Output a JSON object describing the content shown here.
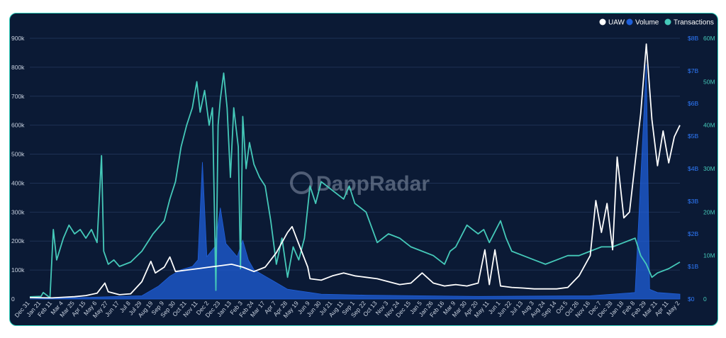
{
  "watermark": "DappRadar",
  "colors": {
    "background": "#0b1a35",
    "border": "#2fd1bd",
    "uaw": "#ffffff",
    "volume": "#1f5fd9",
    "transactions": "#45c9b9",
    "grid": "#1e3155",
    "left_axis_text": "#c9d2e0",
    "mid_axis_text": "#2f7bff",
    "right_axis_text": "#45c9b9"
  },
  "chart_data": {
    "type": "line",
    "legend": {
      "position": "top-right",
      "items": [
        "UAW",
        "Volume",
        "Transactions"
      ]
    },
    "grid": true,
    "x_ticks": [
      "Dec 31",
      "Jan 21",
      "Feb 11",
      "Mar 4",
      "Mar 25",
      "Apr 15",
      "May 6",
      "May 27",
      "Jun 17",
      "Jul 8",
      "Jul 29",
      "Aug 19",
      "Sep 9",
      "Sep 30",
      "Oct 21",
      "Nov 11",
      "Dec 2",
      "Dec 23",
      "Jan 13",
      "Feb 3",
      "Feb 24",
      "Mar 17",
      "Apr 7",
      "Apr 28",
      "May 19",
      "Jun 9",
      "Jun 30",
      "Jul 21",
      "Aug 11",
      "Sep 1",
      "Sep 22",
      "Oct 13",
      "Nov 3",
      "Nov 24",
      "Dec 15",
      "Jan 5",
      "Jan 26",
      "Feb 16",
      "Mar 9",
      "Mar 30",
      "Apr 20",
      "May 11",
      "Jun 1",
      "Jun 22",
      "Jul 13",
      "Aug 3",
      "Aug 24",
      "Sep 14",
      "Oct 5",
      "Oct 26",
      "Nov 16",
      "Dec 7",
      "Dec 28",
      "Jan 18",
      "Feb 8",
      "Feb 29",
      "Mar 21",
      "Apr 11",
      "May 2"
    ],
    "axes": {
      "uaw": {
        "ticks": [
          "0",
          "100k",
          "200k",
          "300k",
          "400k",
          "500k",
          "600k",
          "700k",
          "800k",
          "900k"
        ],
        "range": [
          0,
          900000
        ]
      },
      "volume": {
        "ticks": [
          "$0",
          "$1B",
          "$2B",
          "$3B",
          "$4B",
          "$5B",
          "$6B",
          "$7B",
          "$8B"
        ],
        "range": [
          0,
          8000000000
        ]
      },
      "transactions": {
        "ticks": [
          "0",
          "10M",
          "20M",
          "30M",
          "40M",
          "50M",
          "60M"
        ],
        "range": [
          0,
          60000000
        ]
      }
    },
    "series": [
      {
        "name": "UAW",
        "axis": "uaw",
        "points": [
          [
            0,
            5000
          ],
          [
            2,
            4000
          ],
          [
            3,
            6000
          ],
          [
            4,
            8000
          ],
          [
            5,
            12000
          ],
          [
            6,
            20000
          ],
          [
            6.7,
            55000
          ],
          [
            7,
            25000
          ],
          [
            8,
            15000
          ],
          [
            9,
            18000
          ],
          [
            10,
            60000
          ],
          [
            10.8,
            130000
          ],
          [
            11.2,
            90000
          ],
          [
            12,
            110000
          ],
          [
            12.5,
            145000
          ],
          [
            13,
            95000
          ],
          [
            14,
            100000
          ],
          [
            15,
            105000
          ],
          [
            16,
            110000
          ],
          [
            17,
            115000
          ],
          [
            18,
            120000
          ],
          [
            19,
            110000
          ],
          [
            20,
            95000
          ],
          [
            21,
            110000
          ],
          [
            22,
            160000
          ],
          [
            23,
            230000
          ],
          [
            23.4,
            250000
          ],
          [
            24,
            190000
          ],
          [
            24.8,
            110000
          ],
          [
            25,
            70000
          ],
          [
            26,
            65000
          ],
          [
            27,
            80000
          ],
          [
            28,
            90000
          ],
          [
            29,
            80000
          ],
          [
            30,
            75000
          ],
          [
            31,
            70000
          ],
          [
            32,
            60000
          ],
          [
            33,
            50000
          ],
          [
            34,
            55000
          ],
          [
            35,
            90000
          ],
          [
            36,
            55000
          ],
          [
            37,
            45000
          ],
          [
            38,
            50000
          ],
          [
            39,
            45000
          ],
          [
            40,
            55000
          ],
          [
            40.6,
            170000
          ],
          [
            41,
            50000
          ],
          [
            41.5,
            170000
          ],
          [
            42,
            45000
          ],
          [
            43,
            40000
          ],
          [
            44,
            38000
          ],
          [
            45,
            35000
          ],
          [
            46,
            35000
          ],
          [
            47,
            35000
          ],
          [
            48,
            40000
          ],
          [
            49,
            80000
          ],
          [
            50,
            150000
          ],
          [
            50.5,
            340000
          ],
          [
            51,
            230000
          ],
          [
            51.5,
            330000
          ],
          [
            52,
            170000
          ],
          [
            52.4,
            490000
          ],
          [
            53,
            280000
          ],
          [
            53.5,
            300000
          ],
          [
            54,
            470000
          ],
          [
            54.5,
            640000
          ],
          [
            55,
            880000
          ],
          [
            55.5,
            620000
          ],
          [
            56,
            460000
          ],
          [
            56.5,
            580000
          ],
          [
            57,
            470000
          ],
          [
            57.5,
            560000
          ],
          [
            58,
            600000
          ]
        ]
      },
      {
        "name": "Transactions",
        "axis": "transactions",
        "points": [
          [
            0,
            500000
          ],
          [
            1,
            600000
          ],
          [
            1.2,
            1500000
          ],
          [
            1.8,
            300000
          ],
          [
            2.1,
            16000000
          ],
          [
            2.4,
            9000000
          ],
          [
            3,
            14000000
          ],
          [
            3.5,
            17000000
          ],
          [
            4,
            15000000
          ],
          [
            4.5,
            16000000
          ],
          [
            5,
            14000000
          ],
          [
            5.5,
            16000000
          ],
          [
            6,
            13000000
          ],
          [
            6.4,
            33000000
          ],
          [
            6.6,
            11000000
          ],
          [
            7,
            8000000
          ],
          [
            7.5,
            9000000
          ],
          [
            8,
            7500000
          ],
          [
            9,
            8500000
          ],
          [
            10,
            11000000
          ],
          [
            11,
            15000000
          ],
          [
            12,
            18000000
          ],
          [
            12.5,
            23000000
          ],
          [
            13,
            27000000
          ],
          [
            13.5,
            35000000
          ],
          [
            14,
            40000000
          ],
          [
            14.5,
            44000000
          ],
          [
            14.9,
            50000000
          ],
          [
            15.2,
            43000000
          ],
          [
            15.6,
            48000000
          ],
          [
            16,
            40000000
          ],
          [
            16.3,
            44000000
          ],
          [
            16.6,
            2000000
          ],
          [
            16.8,
            40000000
          ],
          [
            17,
            46000000
          ],
          [
            17.3,
            52000000
          ],
          [
            17.6,
            44000000
          ],
          [
            17.9,
            28000000
          ],
          [
            18.2,
            44000000
          ],
          [
            18.6,
            35000000
          ],
          [
            18.8,
            7000000
          ],
          [
            19,
            42000000
          ],
          [
            19.3,
            30000000
          ],
          [
            19.6,
            36000000
          ],
          [
            20,
            31000000
          ],
          [
            20.5,
            28000000
          ],
          [
            21,
            26000000
          ],
          [
            21.5,
            18000000
          ],
          [
            22,
            8000000
          ],
          [
            22.5,
            14000000
          ],
          [
            23,
            5000000
          ],
          [
            23.5,
            12000000
          ],
          [
            24,
            9000000
          ],
          [
            24.5,
            14000000
          ],
          [
            25,
            26000000
          ],
          [
            25.5,
            22000000
          ],
          [
            26,
            27000000
          ],
          [
            27,
            25000000
          ],
          [
            28,
            23000000
          ],
          [
            28.5,
            26000000
          ],
          [
            29,
            22000000
          ],
          [
            30,
            20000000
          ],
          [
            31,
            13000000
          ],
          [
            32,
            15000000
          ],
          [
            33,
            14000000
          ],
          [
            34,
            12000000
          ],
          [
            35,
            11000000
          ],
          [
            36,
            10000000
          ],
          [
            37,
            8000000
          ],
          [
            37.5,
            11000000
          ],
          [
            38,
            12000000
          ],
          [
            39,
            17000000
          ],
          [
            39.5,
            16000000
          ],
          [
            40,
            15000000
          ],
          [
            40.5,
            16000000
          ],
          [
            41,
            13000000
          ],
          [
            42,
            18000000
          ],
          [
            42.5,
            14000000
          ],
          [
            43,
            11000000
          ],
          [
            44,
            10000000
          ],
          [
            45,
            9000000
          ],
          [
            46,
            8000000
          ],
          [
            47,
            9000000
          ],
          [
            48,
            10000000
          ],
          [
            49,
            10000000
          ],
          [
            50,
            11000000
          ],
          [
            51,
            12000000
          ],
          [
            52,
            12000000
          ],
          [
            53,
            13000000
          ],
          [
            54,
            14000000
          ],
          [
            54.5,
            10000000
          ],
          [
            55,
            8000000
          ],
          [
            55.5,
            5000000
          ],
          [
            56,
            6000000
          ],
          [
            57,
            7000000
          ],
          [
            58,
            8500000
          ]
        ]
      },
      {
        "name": "Volume",
        "axis": "volume",
        "points": [
          [
            0,
            0
          ],
          [
            5,
            50000000
          ],
          [
            10,
            100000000
          ],
          [
            11.5,
            400000000
          ],
          [
            12.5,
            700000000
          ],
          [
            13.5,
            900000000
          ],
          [
            14.5,
            1000000000
          ],
          [
            15,
            1200000000
          ],
          [
            15.4,
            4200000000
          ],
          [
            15.8,
            1300000000
          ],
          [
            16.5,
            1600000000
          ],
          [
            17,
            2800000000
          ],
          [
            17.5,
            1700000000
          ],
          [
            18,
            1500000000
          ],
          [
            18.5,
            1300000000
          ],
          [
            19,
            1800000000
          ],
          [
            19.5,
            1200000000
          ],
          [
            20,
            900000000
          ],
          [
            21,
            700000000
          ],
          [
            22,
            500000000
          ],
          [
            23,
            300000000
          ],
          [
            24,
            250000000
          ],
          [
            25,
            200000000
          ],
          [
            26,
            150000000
          ],
          [
            30,
            120000000
          ],
          [
            40,
            80000000
          ],
          [
            50,
            100000000
          ],
          [
            54,
            200000000
          ],
          [
            55,
            7200000000
          ],
          [
            55.3,
            300000000
          ],
          [
            56,
            200000000
          ],
          [
            58,
            150000000
          ]
        ]
      }
    ]
  }
}
